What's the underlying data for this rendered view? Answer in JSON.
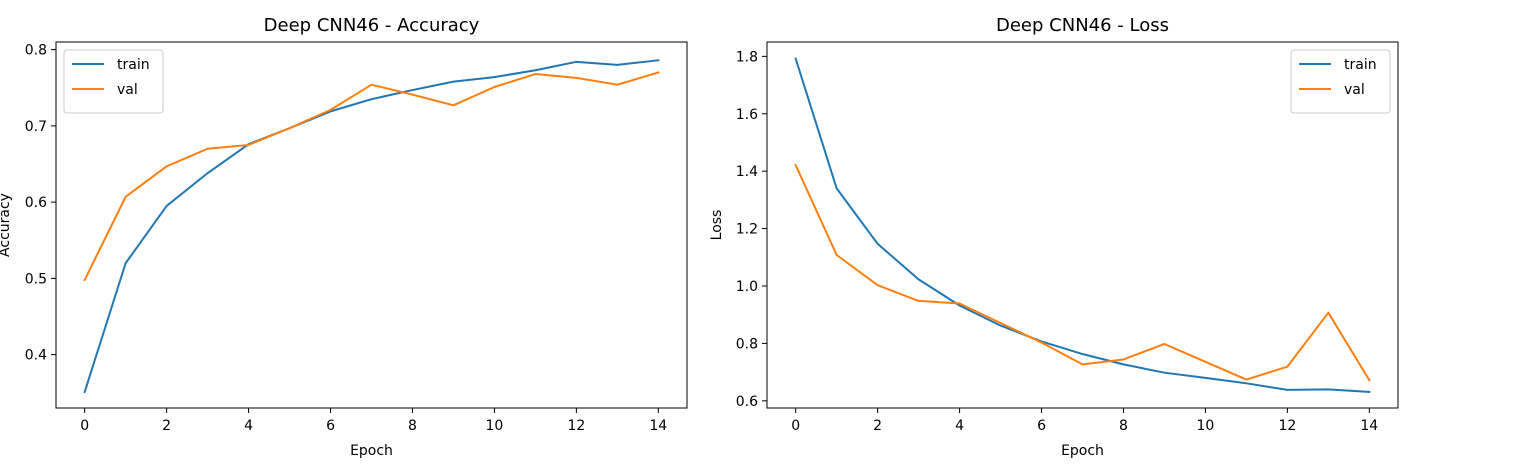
{
  "chart_data": [
    {
      "type": "line",
      "title": "Deep CNN46 - Accuracy",
      "xlabel": "Epoch",
      "ylabel": "Accuracy",
      "xlim": [
        -0.7,
        14.7
      ],
      "ylim": [
        0.33,
        0.81
      ],
      "xticks": [
        0,
        2,
        4,
        6,
        8,
        10,
        12,
        14
      ],
      "yticks": [
        0.4,
        0.5,
        0.6,
        0.7,
        0.8
      ],
      "ytick_labels": [
        "0.4",
        "0.5",
        "0.6",
        "0.7",
        "0.8"
      ],
      "legend_position": "upper-left",
      "x": [
        0,
        1,
        2,
        3,
        4,
        5,
        6,
        7,
        8,
        9,
        10,
        11,
        12,
        13,
        14
      ],
      "series": [
        {
          "name": "train",
          "color": "#1f77b4",
          "values": [
            0.351,
            0.52,
            0.595,
            0.638,
            0.676,
            0.697,
            0.719,
            0.735,
            0.747,
            0.758,
            0.764,
            0.773,
            0.784,
            0.78,
            0.786
          ]
        },
        {
          "name": "val",
          "color": "#ff7f0e",
          "values": [
            0.498,
            0.607,
            0.647,
            0.67,
            0.675,
            0.697,
            0.721,
            0.754,
            0.741,
            0.727,
            0.751,
            0.768,
            0.763,
            0.754,
            0.77
          ]
        }
      ]
    },
    {
      "type": "line",
      "title": "Deep CNN46 - Loss",
      "xlabel": "Epoch",
      "ylabel": "Loss",
      "xlim": [
        -0.7,
        14.7
      ],
      "ylim": [
        0.575,
        1.85
      ],
      "xticks": [
        0,
        2,
        4,
        6,
        8,
        10,
        12,
        14
      ],
      "yticks": [
        0.6,
        0.8,
        1.0,
        1.2,
        1.4,
        1.6,
        1.8
      ],
      "ytick_labels": [
        "0.6",
        "0.8",
        "1.0",
        "1.2",
        "1.4",
        "1.6",
        "1.8"
      ],
      "legend_position": "upper-right",
      "x": [
        0,
        1,
        2,
        3,
        4,
        5,
        6,
        7,
        8,
        9,
        10,
        11,
        12,
        13,
        14
      ],
      "series": [
        {
          "name": "train",
          "color": "#1f77b4",
          "values": [
            1.792,
            1.34,
            1.147,
            1.023,
            0.932,
            0.862,
            0.807,
            0.763,
            0.727,
            0.698,
            0.68,
            0.661,
            0.638,
            0.64,
            0.631
          ]
        },
        {
          "name": "val",
          "color": "#ff7f0e",
          "values": [
            1.421,
            1.108,
            1.003,
            0.948,
            0.939,
            0.871,
            0.803,
            0.727,
            0.744,
            0.798,
            0.736,
            0.674,
            0.719,
            0.907,
            0.672
          ]
        }
      ]
    }
  ]
}
